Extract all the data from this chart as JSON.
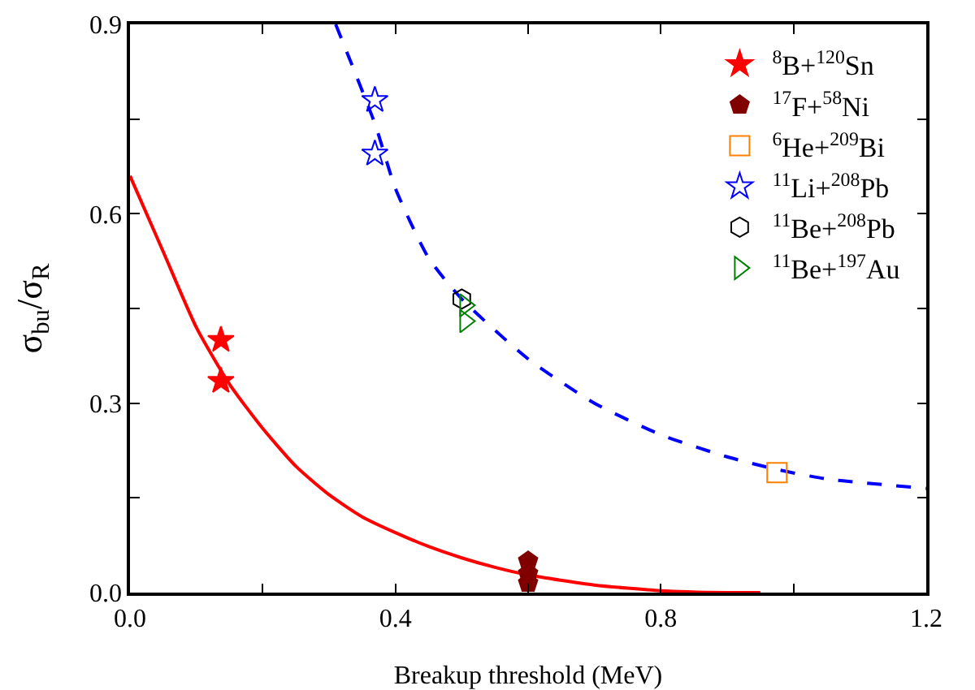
{
  "chart_data": {
    "type": "scatter",
    "xlabel": "Breakup threshold (MeV)",
    "ylabel": "σ$_{bu}$/σ$_{R}$",
    "xlim": [
      0,
      1.2
    ],
    "ylim": [
      0,
      0.9
    ],
    "xticks": [
      {
        "value": 0,
        "label": "0.0"
      },
      {
        "value": 0.2,
        "label": null
      },
      0.4,
      {
        "value": 0.6,
        "label": null
      },
      0.8,
      {
        "value": 1.0,
        "label": null
      },
      1.2
    ],
    "yticks": [
      {
        "value": 0,
        "label": "0.0"
      },
      {
        "value": 0.15,
        "label": null
      },
      0.3,
      {
        "value": 0.45,
        "label": null
      },
      0.6,
      {
        "value": 0.75,
        "label": null
      },
      0.9
    ],
    "grid": false,
    "legend": "top right",
    "series": [
      {
        "type": "line",
        "color": "#ff0000",
        "line_style": "solid",
        "marker": "none",
        "x": [
          0,
          0.05,
          0.1,
          0.15,
          0.2,
          0.25,
          0.3,
          0.35,
          0.4,
          0.45,
          0.5,
          0.55,
          0.6,
          0.7,
          0.8,
          0.9,
          0.95
        ],
        "values": [
          0.66,
          0.54,
          0.42,
          0.33,
          0.26,
          0.2,
          0.155,
          0.12,
          0.095,
          0.073,
          0.055,
          0.04,
          0.028,
          0.012,
          0.003,
          0,
          0
        ]
      },
      {
        "type": "line",
        "color": "#0000ff",
        "line_style": "dashed",
        "marker": "none",
        "x": [
          0.31,
          0.37,
          0.4,
          0.45,
          0.5,
          0.6,
          0.7,
          0.8,
          0.9,
          0.975,
          1.05,
          1.2
        ],
        "values": [
          0.9,
          0.74,
          0.64,
          0.53,
          0.465,
          0.37,
          0.3,
          0.25,
          0.215,
          0.195,
          0.18,
          0.165
        ]
      },
      {
        "name": "$^{8}$B+$^{120}$Sn",
        "color": "#ff0000",
        "marker": "star",
        "x": [
          0.137,
          0.137
        ],
        "values": [
          0.4,
          0.335
        ]
      },
      {
        "name": "$^{17}$F+$^{58}$Ni",
        "color": "#800000",
        "x": [
          0.6,
          0.6,
          0.6
        ],
        "values": [
          0.05,
          0.03,
          0.015
        ]
      },
      {
        "name": "$^{6}$He+$^{209}$Bi",
        "color": "#ff8000",
        "marker": "square",
        "x": [
          0.975
        ],
        "values": [
          0.19
        ]
      },
      {
        "name": "$^{11}$Li+$^{208}$Pb",
        "color": "#0000ff",
        "marker": "star",
        "x": [
          0.369,
          0.369
        ],
        "values": [
          0.78,
          0.695
        ]
      },
      {
        "name": "$^{11}$Be+$^{208}$Pb",
        "color": "#000000",
        "x": [
          0.5
        ],
        "values": [
          0.465
        ]
      },
      {
        "name": "$^{11}$Be+$^{197}$Au",
        "color": "#008000",
        "marker": "triangle",
        "x": [
          0.505,
          0.505
        ],
        "values": [
          0.455,
          0.43
        ]
      }
    ]
  }
}
